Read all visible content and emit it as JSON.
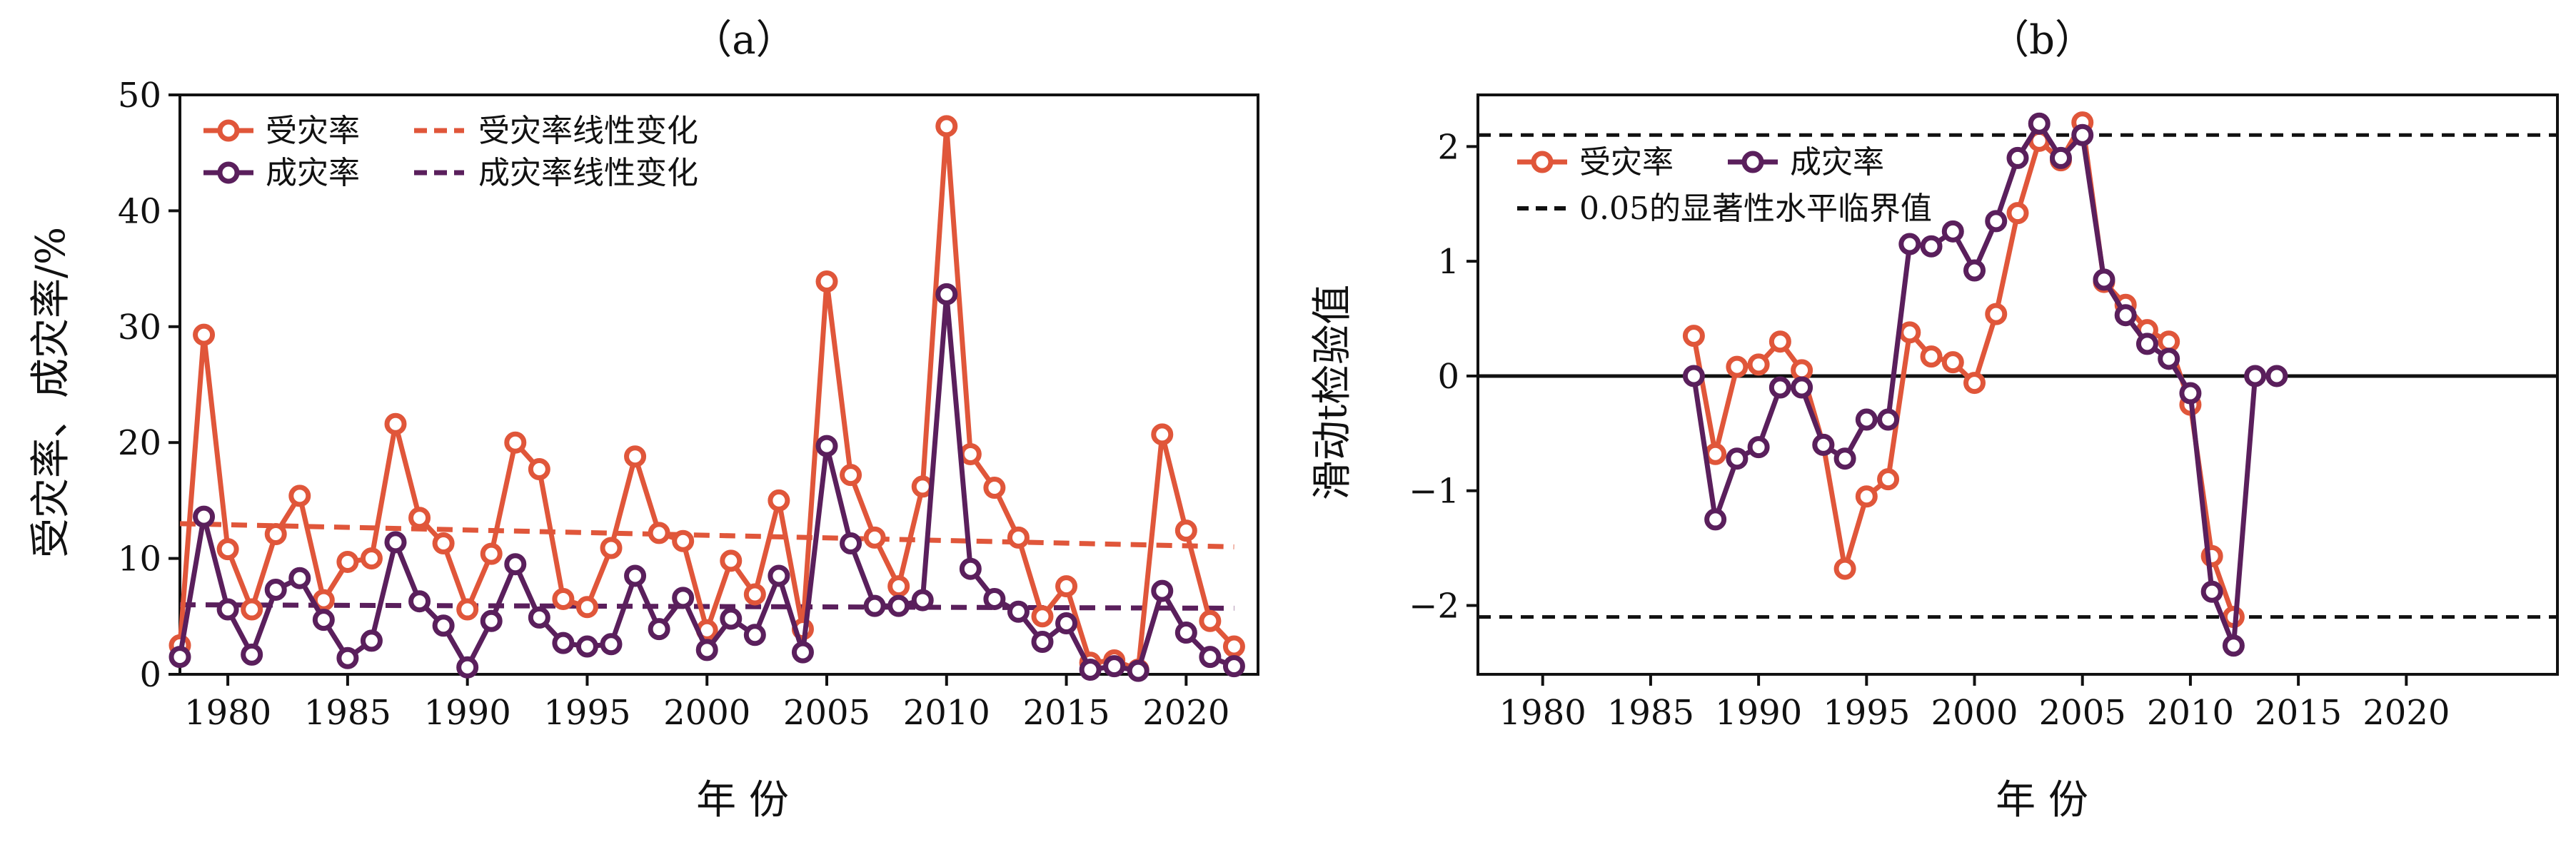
{
  "colors": {
    "series_a": "#e0563a",
    "series_b": "#5a1f5c",
    "critical": "#111111",
    "axis": "#111111"
  },
  "chart_data": [
    {
      "type": "line",
      "title": "（a）",
      "xlabel": "年 份",
      "ylabel": "受灾率、成灾率/%",
      "xlim": [
        1978,
        2023
      ],
      "ylim": [
        0,
        50
      ],
      "xticks": [
        1980,
        1985,
        1990,
        1995,
        2000,
        2005,
        2010,
        2015,
        2020
      ],
      "yticks": [
        0,
        10,
        20,
        30,
        40,
        50
      ],
      "grid": false,
      "legend_position": "top-left",
      "x": [
        1978,
        1979,
        1980,
        1981,
        1982,
        1983,
        1984,
        1985,
        1986,
        1987,
        1988,
        1989,
        1990,
        1991,
        1992,
        1993,
        1994,
        1995,
        1996,
        1997,
        1998,
        1999,
        2000,
        2001,
        2002,
        2003,
        2004,
        2005,
        2006,
        2007,
        2008,
        2009,
        2010,
        2011,
        2012,
        2013,
        2014,
        2015,
        2016,
        2017,
        2018,
        2019,
        2020,
        2021,
        2022
      ],
      "series": [
        {
          "name": "受灾率",
          "values": [
            2.5,
            29.3,
            10.8,
            5.6,
            12.1,
            15.4,
            6.4,
            9.7,
            10.0,
            21.6,
            13.5,
            11.3,
            5.6,
            10.4,
            20.0,
            17.7,
            6.5,
            5.8,
            10.9,
            18.8,
            12.2,
            11.5,
            3.8,
            9.8,
            6.9,
            15.0,
            3.9,
            33.9,
            17.2,
            11.8,
            7.6,
            16.2,
            47.3,
            19.0,
            16.1,
            11.8,
            5.0,
            7.6,
            1.0,
            1.2,
            0.4,
            20.7,
            12.4,
            4.6,
            2.4
          ]
        },
        {
          "name": "成灾率",
          "values": [
            1.5,
            13.6,
            5.6,
            1.7,
            7.3,
            8.3,
            4.7,
            1.4,
            2.9,
            11.4,
            6.3,
            4.2,
            0.6,
            4.6,
            9.5,
            4.9,
            2.7,
            2.4,
            2.6,
            8.5,
            3.9,
            6.6,
            2.1,
            4.8,
            3.4,
            8.5,
            1.9,
            19.7,
            11.3,
            5.9,
            5.9,
            6.4,
            32.8,
            9.1,
            6.5,
            5.4,
            2.8,
            4.4,
            0.4,
            0.7,
            0.3,
            7.2,
            3.6,
            1.5,
            0.7
          ]
        }
      ],
      "trend_lines": [
        {
          "name": "受灾率线性变化",
          "x": [
            1978,
            2022
          ],
          "values": [
            13.0,
            11.0
          ]
        },
        {
          "name": "成灾率线性变化",
          "x": [
            1978,
            2022
          ],
          "values": [
            6.0,
            5.7
          ]
        }
      ]
    },
    {
      "type": "line",
      "title": "（b）",
      "xlabel": "年 份",
      "ylabel": "滑动t检验值",
      "xlim": [
        1977,
        2027
      ],
      "ylim": [
        -2.6,
        2.45
      ],
      "xticks": [
        1980,
        1985,
        1990,
        1995,
        2000,
        2005,
        2010,
        2015,
        2020
      ],
      "yticks": [
        -2,
        -1,
        0,
        1,
        2
      ],
      "ytick_labels": [
        "−2",
        "−1",
        "0",
        "1",
        "2"
      ],
      "grid": false,
      "legend_position": "top-left",
      "reference_lines": [
        {
          "name": "0.05的显著性水平临界值",
          "y": [
            2.1,
            -2.1
          ],
          "style": "dashed"
        },
        {
          "name": "",
          "y": [
            0
          ],
          "style": "solid"
        }
      ],
      "series": [
        {
          "name": "受灾率",
          "x": [
            1987,
            1988,
            1989,
            1990,
            1991,
            1992,
            1993,
            1994,
            1995,
            1996,
            1997,
            1998,
            1999,
            2000,
            2001,
            2002,
            2003,
            2004,
            2005,
            2006,
            2007,
            2008,
            2009,
            2010,
            2011,
            2012
          ],
          "values": [
            0.35,
            -0.68,
            0.08,
            0.1,
            0.3,
            0.05,
            -0.6,
            -1.68,
            -1.05,
            -0.9,
            0.38,
            0.17,
            0.12,
            -0.06,
            0.54,
            1.42,
            2.05,
            1.88,
            2.21,
            0.82,
            0.62,
            0.4,
            0.3,
            -0.25,
            -1.57,
            -2.1
          ]
        },
        {
          "name": "成灾率",
          "x": [
            1987,
            1988,
            1989,
            1990,
            1991,
            1992,
            1993,
            1994,
            1995,
            1996,
            1997,
            1998,
            1999,
            2000,
            2001,
            2002,
            2003,
            2004,
            2005,
            2006,
            2007,
            2008,
            2009,
            2010,
            2011,
            2012,
            2013,
            2014
          ],
          "values": [
            0.0,
            -1.25,
            -0.72,
            -0.62,
            -0.1,
            -0.1,
            -0.6,
            -0.72,
            -0.38,
            -0.38,
            1.15,
            1.13,
            1.26,
            0.92,
            1.35,
            1.9,
            2.2,
            1.9,
            2.1,
            0.84,
            0.53,
            0.28,
            0.15,
            -0.15,
            -1.88,
            -2.35,
            0.0,
            0.0
          ]
        }
      ]
    }
  ]
}
